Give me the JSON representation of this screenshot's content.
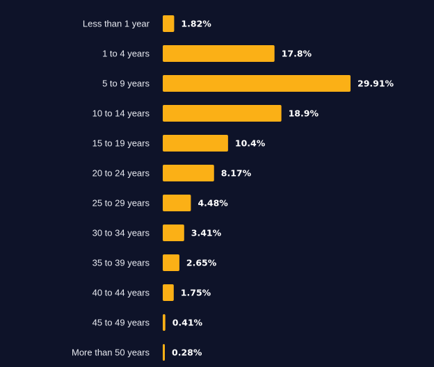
{
  "chart_data": {
    "type": "bar",
    "orientation": "horizontal",
    "categories": [
      "Less than 1 year",
      "1 to 4 years",
      "5 to 9 years",
      "10 to 14 years",
      "15 to 19 years",
      "20 to 24 years",
      "25 to 29 years",
      "30 to 34 years",
      "35 to 39 years",
      "40 to 44 years",
      "45 to 49 years",
      "More than 50 years"
    ],
    "values": [
      1.82,
      17.8,
      29.91,
      18.9,
      10.4,
      8.17,
      4.48,
      3.41,
      2.65,
      1.75,
      0.41,
      0.28
    ],
    "value_labels": [
      "1.82%",
      "17.8%",
      "29.91%",
      "18.9%",
      "10.4%",
      "8.17%",
      "4.48%",
      "3.41%",
      "2.65%",
      "1.75%",
      "0.41%",
      "0.28%"
    ],
    "bar_color": "#fbb016",
    "background_color": "#0e1329",
    "grid": false,
    "legend": "none"
  }
}
